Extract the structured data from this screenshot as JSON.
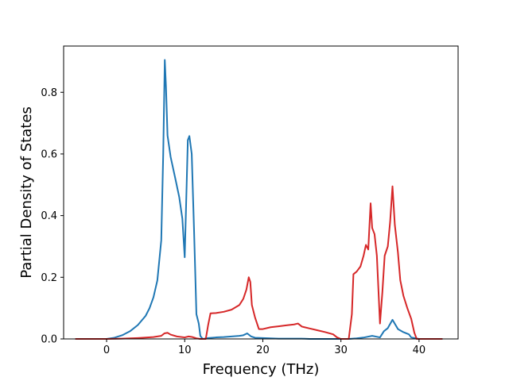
{
  "chart_data": {
    "type": "line",
    "title": "",
    "xlabel": "Frequency (THz)",
    "ylabel": "Partial Density of States",
    "xlim": [
      -5.5,
      45.0
    ],
    "ylim": [
      0.0,
      0.95
    ],
    "xticks": [
      0,
      10,
      20,
      30,
      40
    ],
    "yticks": [
      0.0,
      0.2,
      0.4,
      0.6,
      0.8
    ],
    "xtick_labels": [
      "0",
      "10",
      "20",
      "30",
      "40"
    ],
    "ytick_labels": [
      "0.0",
      "0.2",
      "0.4",
      "0.6",
      "0.8"
    ],
    "grid": false,
    "legend": "none",
    "series": [
      {
        "color": "#1f77b4",
        "points": [
          [
            -4,
            0
          ],
          [
            -1,
            0
          ],
          [
            0,
            0
          ],
          [
            1,
            0.004
          ],
          [
            2,
            0.012
          ],
          [
            3,
            0.025
          ],
          [
            4,
            0.045
          ],
          [
            5,
            0.075
          ],
          [
            5.5,
            0.1
          ],
          [
            6,
            0.135
          ],
          [
            6.5,
            0.19
          ],
          [
            7,
            0.32
          ],
          [
            7.25,
            0.6
          ],
          [
            7.45,
            0.905
          ],
          [
            7.6,
            0.82
          ],
          [
            7.8,
            0.66
          ],
          [
            8.2,
            0.59
          ],
          [
            8.8,
            0.52
          ],
          [
            9.3,
            0.46
          ],
          [
            9.7,
            0.39
          ],
          [
            10,
            0.265
          ],
          [
            10.25,
            0.5
          ],
          [
            10.4,
            0.645
          ],
          [
            10.6,
            0.658
          ],
          [
            10.9,
            0.6
          ],
          [
            11.2,
            0.35
          ],
          [
            11.5,
            0.08
          ],
          [
            11.8,
            0.05
          ],
          [
            12,
            0.01
          ],
          [
            12.3,
            0
          ],
          [
            13,
            0.003
          ],
          [
            14,
            0.005
          ],
          [
            15,
            0.006
          ],
          [
            16,
            0.008
          ],
          [
            17,
            0.01
          ],
          [
            17.5,
            0.012
          ],
          [
            18,
            0.018
          ],
          [
            18.5,
            0.008
          ],
          [
            19,
            0.004
          ],
          [
            20,
            0.003
          ],
          [
            21,
            0.002
          ],
          [
            22,
            0.001
          ],
          [
            23,
            0.001
          ],
          [
            24,
            0.001
          ],
          [
            25,
            0.001
          ],
          [
            26,
            0
          ],
          [
            28,
            0
          ],
          [
            30,
            0
          ],
          [
            31,
            0
          ],
          [
            32,
            0.002
          ],
          [
            33,
            0.005
          ],
          [
            34,
            0.01
          ],
          [
            35,
            0.005
          ],
          [
            35.5,
            0.025
          ],
          [
            36,
            0.035
          ],
          [
            36.6,
            0.062
          ],
          [
            37.3,
            0.032
          ],
          [
            38,
            0.022
          ],
          [
            38.7,
            0.015
          ],
          [
            39,
            0.005
          ],
          [
            40,
            0
          ],
          [
            43,
            0
          ]
        ]
      },
      {
        "color": "#d62728",
        "points": [
          [
            -4,
            0
          ],
          [
            0,
            0
          ],
          [
            2,
            0.001
          ],
          [
            4,
            0.003
          ],
          [
            6,
            0.006
          ],
          [
            7,
            0.01
          ],
          [
            7.4,
            0.018
          ],
          [
            7.8,
            0.02
          ],
          [
            8.2,
            0.014
          ],
          [
            9,
            0.008
          ],
          [
            10,
            0.005
          ],
          [
            10.5,
            0.008
          ],
          [
            11,
            0.006
          ],
          [
            11.5,
            0.002
          ],
          [
            12,
            0
          ],
          [
            12.7,
            0
          ],
          [
            13,
            0.045
          ],
          [
            13.3,
            0.083
          ],
          [
            14,
            0.084
          ],
          [
            15,
            0.088
          ],
          [
            16,
            0.095
          ],
          [
            17,
            0.11
          ],
          [
            17.5,
            0.13
          ],
          [
            17.9,
            0.16
          ],
          [
            18.2,
            0.2
          ],
          [
            18.4,
            0.185
          ],
          [
            18.6,
            0.11
          ],
          [
            19,
            0.07
          ],
          [
            19.5,
            0.032
          ],
          [
            20,
            0.032
          ],
          [
            21,
            0.038
          ],
          [
            22,
            0.041
          ],
          [
            23,
            0.044
          ],
          [
            24,
            0.047
          ],
          [
            24.5,
            0.05
          ],
          [
            25,
            0.04
          ],
          [
            26,
            0.034
          ],
          [
            27,
            0.028
          ],
          [
            28,
            0.022
          ],
          [
            29,
            0.015
          ],
          [
            29.5,
            0.005
          ],
          [
            30,
            0
          ],
          [
            31,
            0
          ],
          [
            31.4,
            0.08
          ],
          [
            31.6,
            0.21
          ],
          [
            32,
            0.218
          ],
          [
            32.5,
            0.235
          ],
          [
            32.9,
            0.27
          ],
          [
            33.2,
            0.305
          ],
          [
            33.5,
            0.29
          ],
          [
            33.8,
            0.44
          ],
          [
            34,
            0.36
          ],
          [
            34.3,
            0.34
          ],
          [
            34.6,
            0.27
          ],
          [
            35,
            0.05
          ],
          [
            35.3,
            0.15
          ],
          [
            35.6,
            0.27
          ],
          [
            36,
            0.3
          ],
          [
            36.3,
            0.38
          ],
          [
            36.6,
            0.495
          ],
          [
            36.9,
            0.37
          ],
          [
            37.3,
            0.28
          ],
          [
            37.6,
            0.19
          ],
          [
            38,
            0.14
          ],
          [
            38.5,
            0.1
          ],
          [
            39,
            0.065
          ],
          [
            39.4,
            0.02
          ],
          [
            39.7,
            0
          ],
          [
            41,
            0
          ],
          [
            43,
            0
          ]
        ]
      }
    ]
  }
}
